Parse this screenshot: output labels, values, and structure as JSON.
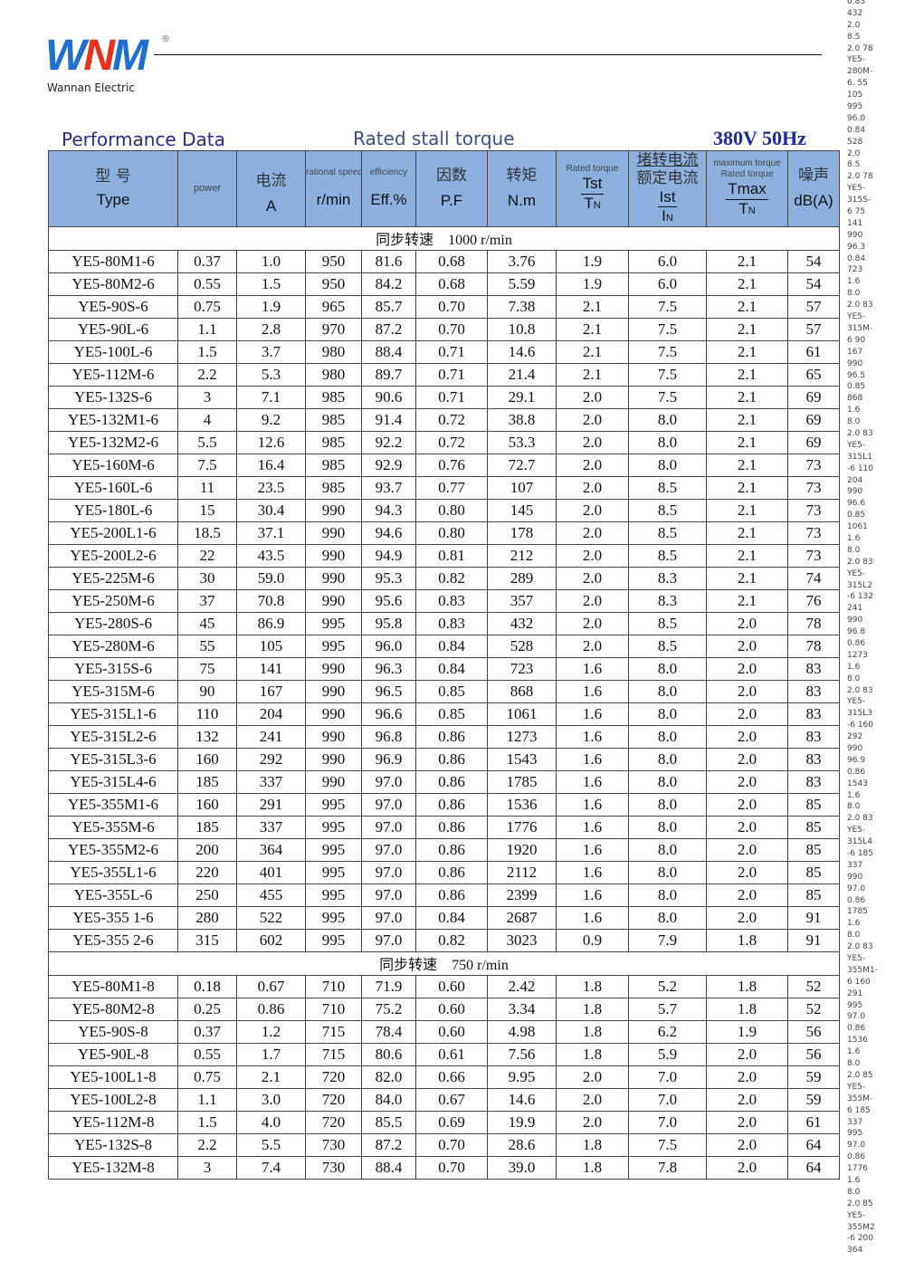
{
  "brand": {
    "logo_text": "WNM",
    "company": "Wannan Electric"
  },
  "title": "Performance Data",
  "voltage": "380V 50Hz",
  "overlay_caption": "Rated stall torque",
  "header": {
    "type_cn": "型  号",
    "type_en": "Type",
    "power": "power",
    "current_cn": "电流",
    "current_unit": "A",
    "speed_small": "rational speed",
    "speed_unit": "r/min",
    "eff_small": "efficiency",
    "eff_unit": "Eff.%",
    "pf_cn": "因数",
    "pf_unit": "P.F",
    "torque_cn": "转矩",
    "torque_unit": "N.m",
    "tst_small": "Rated torque",
    "tst_num": "Tst",
    "tst_den": "T",
    "tst_sub": "N",
    "ist_cn1": "堵转电流",
    "ist_cn2": "额定电流",
    "ist_num": "Ist",
    "ist_den": "I",
    "ist_sub": "N",
    "tmax_small1": "maximum torque",
    "tmax_small2": "Rated torque",
    "tmax_num": "Tmax",
    "tmax_den": "T",
    "tmax_sub": "N",
    "noise_cn": "噪声",
    "noise_unit": "dB(A)"
  },
  "sections": [
    {
      "label": "同步转速    1000 r/min",
      "rows": [
        [
          "YE5-80M1-6",
          "0.37",
          "1.0",
          "950",
          "81.6",
          "0.68",
          "3.76",
          "1.9",
          "6.0",
          "2.1",
          "54"
        ],
        [
          "YE5-80M2-6",
          "0.55",
          "1.5",
          "950",
          "84.2",
          "0.68",
          "5.59",
          "1.9",
          "6.0",
          "2.1",
          "54"
        ],
        [
          "YE5-90S-6",
          "0.75",
          "1.9",
          "965",
          "85.7",
          "0.70",
          "7.38",
          "2.1",
          "7.5",
          "2.1",
          "57"
        ],
        [
          "YE5-90L-6",
          "1.1",
          "2.8",
          "970",
          "87.2",
          "0.70",
          "10.8",
          "2.1",
          "7.5",
          "2.1",
          "57"
        ],
        [
          "YE5-100L-6",
          "1.5",
          "3.7",
          "980",
          "88.4",
          "0.71",
          "14.6",
          "2.1",
          "7.5",
          "2.1",
          "61"
        ],
        [
          "YE5-112M-6",
          "2.2",
          "5.3",
          "980",
          "89.7",
          "0.71",
          "21.4",
          "2.1",
          "7.5",
          "2.1",
          "65"
        ],
        [
          "YE5-132S-6",
          "3",
          "7.1",
          "985",
          "90.6",
          "0.71",
          "29.1",
          "2.0",
          "7.5",
          "2.1",
          "69"
        ],
        [
          "YE5-132M1-6",
          "4",
          "9.2",
          "985",
          "91.4",
          "0.72",
          "38.8",
          "2.0",
          "8.0",
          "2.1",
          "69"
        ],
        [
          "YE5-132M2-6",
          "5.5",
          "12.6",
          "985",
          "92.2",
          "0.72",
          "53.3",
          "2.0",
          "8.0",
          "2.1",
          "69"
        ],
        [
          "YE5-160M-6",
          "7.5",
          "16.4",
          "985",
          "92.9",
          "0.76",
          "72.7",
          "2.0",
          "8.0",
          "2.1",
          "73"
        ],
        [
          "YE5-160L-6",
          "11",
          "23.5",
          "985",
          "93.7",
          "0.77",
          "107",
          "2.0",
          "8.5",
          "2.1",
          "73"
        ],
        [
          "YE5-180L-6",
          "15",
          "30.4",
          "990",
          "94.3",
          "0.80",
          "145",
          "2.0",
          "8.5",
          "2.1",
          "73"
        ],
        [
          "YE5-200L1-6",
          "18.5",
          "37.1",
          "990",
          "94.6",
          "0.80",
          "178",
          "2.0",
          "8.5",
          "2.1",
          "73"
        ],
        [
          "YE5-200L2-6",
          "22",
          "43.5",
          "990",
          "94.9",
          "0.81",
          "212",
          "2.0",
          "8.5",
          "2.1",
          "73"
        ],
        [
          "YE5-225M-6",
          "30",
          "59.0",
          "990",
          "95.3",
          "0.82",
          "289",
          "2.0",
          "8.3",
          "2.1",
          "74"
        ],
        [
          "YE5-250M-6",
          "37",
          "70.8",
          "990",
          "95.6",
          "0.83",
          "357",
          "2.0",
          "8.3",
          "2.1",
          "76"
        ],
        [
          "YE5-280S-6",
          "45",
          "86.9",
          "995",
          "95.8",
          "0.83",
          "432",
          "2.0",
          "8.5",
          "2.0",
          "78"
        ],
        [
          "YE5-280M-6",
          "55",
          "105",
          "995",
          "96.0",
          "0.84",
          "528",
          "2.0",
          "8.5",
          "2.0",
          "78"
        ],
        [
          "YE5-315S-6",
          "75",
          "141",
          "990",
          "96.3",
          "0.84",
          "723",
          "1.6",
          "8.0",
          "2.0",
          "83"
        ],
        [
          "YE5-315M-6",
          "90",
          "167",
          "990",
          "96.5",
          "0.85",
          "868",
          "1.6",
          "8.0",
          "2.0",
          "83"
        ],
        [
          "YE5-315L1-6",
          "110",
          "204",
          "990",
          "96.6",
          "0.85",
          "1061",
          "1.6",
          "8.0",
          "2.0",
          "83"
        ],
        [
          "YE5-315L2-6",
          "132",
          "241",
          "990",
          "96.8",
          "0.86",
          "1273",
          "1.6",
          "8.0",
          "2.0",
          "83"
        ],
        [
          "YE5-315L3-6",
          "160",
          "292",
          "990",
          "96.9",
          "0.86",
          "1543",
          "1.6",
          "8.0",
          "2.0",
          "83"
        ],
        [
          "YE5-315L4-6",
          "185",
          "337",
          "990",
          "97.0",
          "0.86",
          "1785",
          "1.6",
          "8.0",
          "2.0",
          "83"
        ],
        [
          "YE5-355M1-6",
          "160",
          "291",
          "995",
          "97.0",
          "0.86",
          "1536",
          "1.6",
          "8.0",
          "2.0",
          "85"
        ],
        [
          "YE5-355M-6",
          "185",
          "337",
          "995",
          "97.0",
          "0.86",
          "1776",
          "1.6",
          "8.0",
          "2.0",
          "85"
        ],
        [
          "YE5-355M2-6",
          "200",
          "364",
          "995",
          "97.0",
          "0.86",
          "1920",
          "1.6",
          "8.0",
          "2.0",
          "85"
        ],
        [
          "YE5-355L1-6",
          "220",
          "401",
          "995",
          "97.0",
          "0.86",
          "2112",
          "1.6",
          "8.0",
          "2.0",
          "85"
        ],
        [
          "YE5-355L-6",
          "250",
          "455",
          "995",
          "97.0",
          "0.86",
          "2399",
          "1.6",
          "8.0",
          "2.0",
          "85"
        ],
        [
          "YE5-355 1-6",
          "280",
          "522",
          "995",
          "97.0",
          "0.84",
          "2687",
          "1.6",
          "8.0",
          "2.0",
          "91"
        ],
        [
          "YE5-355 2-6",
          "315",
          "602",
          "995",
          "97.0",
          "0.82",
          "3023",
          "0.9",
          "7.9",
          "1.8",
          "91"
        ]
      ]
    },
    {
      "label": "同步转速    750 r/min",
      "rows": [
        [
          "YE5-80M1-8",
          "0.18",
          "0.67",
          "710",
          "71.9",
          "0.60",
          "2.42",
          "1.8",
          "5.2",
          "1.8",
          "52"
        ],
        [
          "YE5-80M2-8",
          "0.25",
          "0.86",
          "710",
          "75.2",
          "0.60",
          "3.34",
          "1.8",
          "5.7",
          "1.8",
          "52"
        ],
        [
          "YE5-90S-8",
          "0.37",
          "1.2",
          "715",
          "78.4",
          "0.60",
          "4.98",
          "1.8",
          "6.2",
          "1.9",
          "56"
        ],
        [
          "YE5-90L-8",
          "0.55",
          "1.7",
          "715",
          "80.6",
          "0.61",
          "7.56",
          "1.8",
          "5.9",
          "2.0",
          "56"
        ],
        [
          "YE5-100L1-8",
          "0.75",
          "2.1",
          "720",
          "82.0",
          "0.66",
          "9.95",
          "2.0",
          "7.0",
          "2.0",
          "59"
        ],
        [
          "YE5-100L2-8",
          "1.1",
          "3.0",
          "720",
          "84.0",
          "0.67",
          "14.6",
          "2.0",
          "7.0",
          "2.0",
          "59"
        ],
        [
          "YE5-112M-8",
          "1.5",
          "4.0",
          "720",
          "85.5",
          "0.69",
          "19.9",
          "2.0",
          "7.0",
          "2.0",
          "61"
        ],
        [
          "YE5-132S-8",
          "2.2",
          "5.5",
          "730",
          "87.2",
          "0.70",
          "28.6",
          "1.8",
          "7.5",
          "2.0",
          "64"
        ],
        [
          "YE5-132M-8",
          "3",
          "7.4",
          "730",
          "88.4",
          "0.70",
          "39.0",
          "1.8",
          "7.8",
          "2.0",
          "64"
        ]
      ]
    }
  ],
  "stray_text": [
    "0.83",
    "432",
    "2.0",
    "8.5",
    "2.0 78",
    "YE5-",
    "280M-",
    "6. 55",
    "105",
    "995",
    "96.0",
    "0.84",
    "528",
    "2.0",
    "8.5",
    "2.0 78",
    "YE5-",
    "315S-",
    "6 75",
    "141",
    "990",
    "96.3",
    "0.84",
    "723",
    "1.6",
    "8.0",
    "2.0 83",
    "YE5-",
    "315M-",
    "6 90",
    "167",
    "990",
    "96.5",
    "0.85",
    "868",
    "1.6",
    "8.0",
    "2.0 83",
    "YE5-",
    "315L1",
    "-6 110",
    "204",
    "990",
    "96.6",
    "0.85",
    "1061",
    "1.6",
    "8.0",
    "2.0 83",
    "YE5-",
    "315L2",
    "-6 132",
    "241",
    "990",
    "96.8",
    "0.86",
    "1273",
    "1.6",
    "8.0",
    "2.0 83",
    "YE5-",
    "315L3",
    "-6 160",
    "292",
    "990",
    "96.9",
    "0.86",
    "1543",
    "1.6",
    "8.0",
    "2.0 83",
    "YE5-",
    "315L4",
    "-6 185",
    "337",
    "990",
    "97.0",
    "0.86",
    "1785",
    "1.6",
    "8.0",
    "2.0 83",
    "YE5-",
    "355M1-",
    "6 160",
    "291",
    "995",
    "97.0",
    "0.86",
    "1536",
    "1.6",
    "8.0",
    "2.0 85",
    "YE5-",
    "355M-",
    "6 185",
    "337",
    "995",
    "97.0",
    "0.86",
    "1776",
    "1.6",
    "8.0",
    "2.0 85",
    "YE5-",
    "355M2",
    "-6 200",
    "364"
  ],
  "colors": {
    "header_bg": "#8eb0de",
    "title": "#2a2a8a",
    "voltage": "#1d2c9c",
    "logo_blue": "#1f6fd0",
    "logo_red": "#e8301c"
  }
}
